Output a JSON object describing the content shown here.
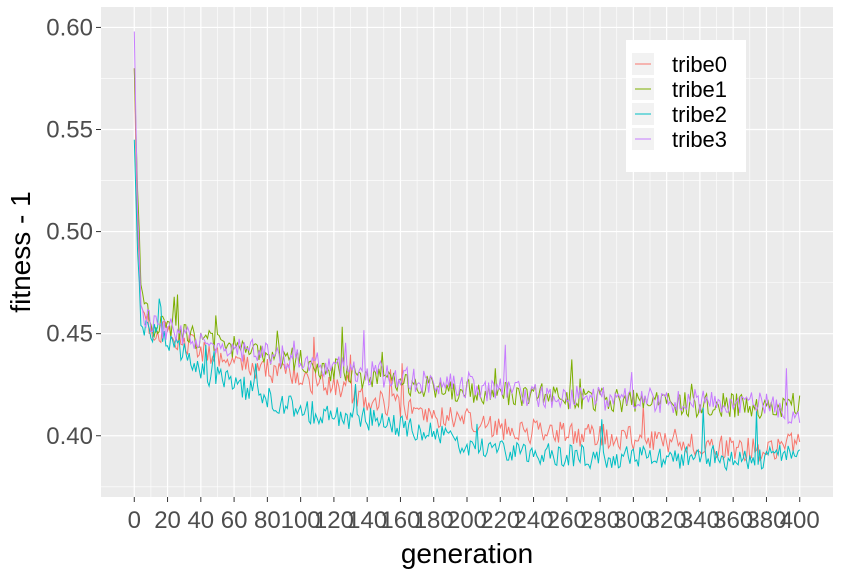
{
  "chart_data": {
    "type": "line",
    "title": "",
    "xlabel": "generation",
    "ylabel": "fitness - 1",
    "xlim": [
      -20,
      420
    ],
    "ylim": [
      0.37,
      0.61
    ],
    "x_ticks": [
      0,
      20,
      40,
      60,
      80,
      100,
      120,
      140,
      160,
      180,
      200,
      220,
      240,
      260,
      280,
      300,
      320,
      340,
      360,
      380,
      400
    ],
    "x_tick_labels": [
      "0",
      "20",
      "40",
      "60",
      "80",
      "100",
      "120",
      "140",
      "160",
      "180",
      "200",
      "220",
      "240",
      "260",
      "280",
      "300",
      "320",
      "340",
      "360",
      "380",
      "400"
    ],
    "y_ticks": [
      0.4,
      0.45,
      0.5,
      0.55,
      0.6
    ],
    "y_tick_labels": [
      "0.40",
      "0.45",
      "0.50",
      "0.55",
      "0.60"
    ],
    "grid": true,
    "legend_position": "top-right",
    "colors": {
      "panel_background": "#ebebeb",
      "grid_line": "#ffffff"
    },
    "series": [
      {
        "name": "tribe0",
        "color": "#F8766D",
        "x": [
          0,
          2,
          4,
          6,
          10,
          20,
          40,
          60,
          80,
          100,
          120,
          140,
          160,
          180,
          200,
          220,
          240,
          260,
          280,
          300,
          320,
          340,
          360,
          380,
          400
        ],
        "y": [
          0.58,
          0.5,
          0.47,
          0.458,
          0.452,
          0.45,
          0.442,
          0.437,
          0.432,
          0.428,
          0.423,
          0.418,
          0.414,
          0.41,
          0.408,
          0.404,
          0.402,
          0.401,
          0.4,
          0.399,
          0.398,
          0.396,
          0.394,
          0.393,
          0.396
        ]
      },
      {
        "name": "tribe1",
        "color": "#7CAE00",
        "x": [
          0,
          2,
          4,
          6,
          10,
          20,
          40,
          60,
          80,
          100,
          120,
          140,
          160,
          180,
          200,
          220,
          240,
          260,
          280,
          300,
          320,
          340,
          360,
          380,
          400
        ],
        "y": [
          0.58,
          0.52,
          0.48,
          0.465,
          0.455,
          0.452,
          0.447,
          0.443,
          0.44,
          0.437,
          0.432,
          0.428,
          0.426,
          0.424,
          0.422,
          0.421,
          0.42,
          0.419,
          0.418,
          0.417,
          0.416,
          0.415,
          0.415,
          0.414,
          0.416
        ]
      },
      {
        "name": "tribe2",
        "color": "#00BFC4",
        "x": [
          0,
          2,
          4,
          6,
          10,
          20,
          40,
          60,
          80,
          100,
          120,
          140,
          160,
          180,
          200,
          220,
          240,
          260,
          280,
          300,
          320,
          340,
          360,
          380,
          400
        ],
        "y": [
          0.545,
          0.49,
          0.46,
          0.452,
          0.45,
          0.447,
          0.432,
          0.425,
          0.418,
          0.412,
          0.41,
          0.408,
          0.405,
          0.4,
          0.396,
          0.393,
          0.391,
          0.39,
          0.39,
          0.389,
          0.389,
          0.39,
          0.389,
          0.388,
          0.393
        ]
      },
      {
        "name": "tribe3",
        "color": "#C77CFF",
        "x": [
          0,
          2,
          4,
          6,
          10,
          20,
          40,
          60,
          80,
          100,
          120,
          140,
          160,
          180,
          200,
          220,
          240,
          260,
          280,
          300,
          320,
          340,
          360,
          380,
          400
        ],
        "y": [
          0.598,
          0.51,
          0.47,
          0.46,
          0.455,
          0.452,
          0.447,
          0.443,
          0.44,
          0.437,
          0.434,
          0.431,
          0.428,
          0.426,
          0.424,
          0.422,
          0.42,
          0.419,
          0.418,
          0.418,
          0.417,
          0.417,
          0.416,
          0.416,
          0.41
        ]
      }
    ]
  }
}
